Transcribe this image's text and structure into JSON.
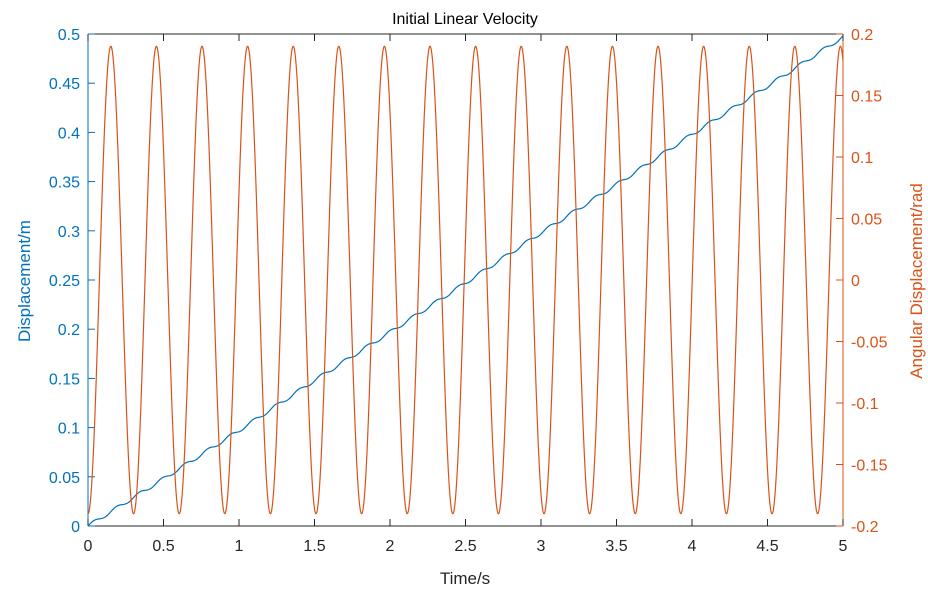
{
  "chart_data": {
    "type": "line",
    "title": "Initial Linear Velocity",
    "xlabel": "Time/s",
    "ylabel_left": "Displacement/m",
    "ylabel_right": "Angular Displacement/rad",
    "xlim": [
      0,
      5
    ],
    "ylim_left": [
      0,
      0.5
    ],
    "ylim_right": [
      -0.2,
      0.2
    ],
    "x_ticks": [
      "0",
      "0.5",
      "1",
      "1.5",
      "2",
      "2.5",
      "3",
      "3.5",
      "4",
      "4.5",
      "5"
    ],
    "y_left_ticks": [
      "0",
      "0.05",
      "0.1",
      "0.15",
      "0.2",
      "0.25",
      "0.3",
      "0.35",
      "0.4",
      "0.45",
      "0.5"
    ],
    "y_right_ticks": [
      "-0.2",
      "-0.15",
      "-0.1",
      "-0.05",
      "0",
      "0.05",
      "0.1",
      "0.15",
      "0.2"
    ],
    "grid": false,
    "series": [
      {
        "axis": "left",
        "color": "#0072BD",
        "x": [
          0,
          0.5,
          1,
          1.5,
          2,
          2.5,
          3,
          3.5,
          4,
          4.5,
          5
        ],
        "values": [
          0,
          0.048,
          0.097,
          0.148,
          0.197,
          0.247,
          0.298,
          0.347,
          0.398,
          0.447,
          0.497
        ]
      },
      {
        "axis": "right",
        "color": "#D95319",
        "amplitude": 0.19,
        "period": 0.302,
        "x": [
          0,
          0.151,
          0.302,
          0.453,
          0.604,
          0.755,
          0.906,
          1.057,
          1.208,
          1.359,
          1.51,
          1.661,
          1.812,
          1.963,
          2.114,
          2.265,
          2.416,
          2.567,
          2.718,
          2.869,
          3.02,
          3.171,
          3.322,
          3.473,
          3.624,
          3.775,
          3.926,
          4.077,
          4.228,
          4.379,
          4.53,
          4.681,
          4.832,
          4.983
        ],
        "values": [
          -0.19,
          0.19,
          -0.19,
          0.19,
          -0.19,
          0.19,
          -0.19,
          0.19,
          -0.19,
          0.19,
          -0.19,
          0.19,
          -0.19,
          0.19,
          -0.19,
          0.19,
          -0.19,
          0.19,
          -0.19,
          0.19,
          -0.19,
          0.19,
          -0.19,
          0.19,
          -0.19,
          0.19,
          -0.19,
          0.19,
          -0.19,
          0.19,
          -0.19,
          0.19,
          -0.19,
          0.19
        ]
      }
    ]
  }
}
